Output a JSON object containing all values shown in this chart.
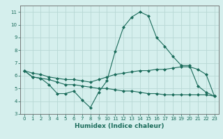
{
  "xlabel": "Humidex (Indice chaleur)",
  "background_color": "#d5efed",
  "grid_color": "#b8d8d5",
  "line_color": "#1a6b5a",
  "x_values": [
    0,
    1,
    2,
    3,
    4,
    5,
    6,
    7,
    8,
    9,
    10,
    11,
    12,
    13,
    14,
    15,
    16,
    17,
    18,
    19,
    20,
    21,
    22,
    23
  ],
  "series1": [
    6.4,
    5.9,
    5.8,
    5.3,
    4.6,
    4.6,
    4.8,
    4.1,
    3.5,
    4.7,
    5.6,
    7.9,
    9.8,
    10.6,
    11.0,
    10.7,
    9.0,
    8.3,
    7.5,
    6.8,
    6.8,
    5.2,
    4.7,
    4.4
  ],
  "series2": [
    6.4,
    6.2,
    6.1,
    5.9,
    5.8,
    5.7,
    5.7,
    5.6,
    5.5,
    5.7,
    5.9,
    6.1,
    6.2,
    6.3,
    6.4,
    6.4,
    6.5,
    6.5,
    6.6,
    6.7,
    6.7,
    6.5,
    6.1,
    4.4
  ],
  "series3": [
    6.4,
    5.9,
    5.8,
    5.7,
    5.5,
    5.3,
    5.3,
    5.2,
    5.1,
    5.0,
    5.0,
    4.9,
    4.8,
    4.8,
    4.7,
    4.6,
    4.6,
    4.5,
    4.5,
    4.5,
    4.5,
    4.5,
    4.5,
    4.4
  ],
  "ylim": [
    3,
    11.5
  ],
  "xlim": [
    -0.5,
    23.5
  ],
  "yticks": [
    3,
    4,
    5,
    6,
    7,
    8,
    9,
    10,
    11
  ],
  "xticks": [
    0,
    1,
    2,
    3,
    4,
    5,
    6,
    7,
    8,
    9,
    10,
    11,
    12,
    13,
    14,
    15,
    16,
    17,
    18,
    19,
    20,
    21,
    22,
    23
  ],
  "tick_fontsize": 5.0,
  "xlabel_fontsize": 6.5
}
